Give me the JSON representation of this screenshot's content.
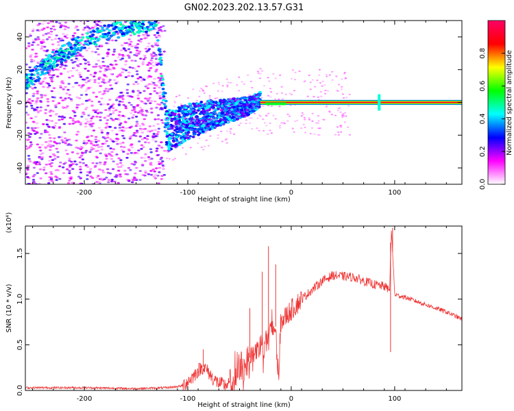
{
  "title": "GN02.2023.202.13.57.G31",
  "chart_data": [
    {
      "type": "heatmap",
      "xlabel": "Height of straight line (km)",
      "ylabel": "Frequency (Hz)",
      "xlim": [
        -257,
        165
      ],
      "ylim": [
        -50,
        50
      ],
      "xticks": [
        -200,
        -100,
        0,
        100
      ],
      "xtick_labels": [
        "-200",
        "-100",
        "0",
        "100"
      ],
      "yticks": [
        -40,
        -20,
        0,
        20,
        40
      ],
      "ytick_labels": [
        "-40",
        "-20",
        "0",
        "20",
        "40"
      ],
      "colorbar": {
        "label": "Normalized spectral amplitude",
        "range": [
          0,
          1
        ],
        "ticks": [
          0.0,
          0.2,
          0.4,
          0.6,
          0.8
        ],
        "tick_labels": [
          "0.0",
          "0.2",
          "0.4",
          "0.6",
          "0.8"
        ],
        "colormap": [
          "#ffffff",
          "#ff00ff",
          "#0000ff",
          "#00ffff",
          "#00ff00",
          "#ffff00",
          "#ff0000",
          "#ff0066"
        ]
      },
      "regions": [
        {
          "x_range": [
            -257,
            -122
          ],
          "description": "broadband scattered noise",
          "level": 0.15
        },
        {
          "x_range": [
            -122,
            -30
          ],
          "description": "noisy signal band",
          "level": 0.35
        },
        {
          "x_range": [
            -30,
            165
          ],
          "description": "strong tone near 0 Hz",
          "level": 0.9
        }
      ],
      "ridge": {
        "x": [
          -257,
          -245,
          -230,
          -215,
          -200,
          -185,
          -170,
          -155,
          -140,
          -130,
          -120,
          -100,
          -80,
          -60,
          -40,
          -30,
          -20,
          -10,
          0,
          50,
          85,
          100,
          165
        ],
        "y": [
          12,
          18,
          26,
          32,
          38,
          41,
          44,
          46,
          48,
          50,
          -18,
          -12,
          -8,
          -5,
          -2,
          2,
          -2,
          -1,
          0,
          0,
          0,
          0,
          0
        ]
      }
    },
    {
      "type": "line",
      "xlabel": "Height of straight line (km)",
      "ylabel": "SNR (10 * v/v)",
      "y_multiplier": "(x10⁴)",
      "xlim": [
        -257,
        165
      ],
      "ylim": [
        0,
        1.8
      ],
      "xticks": [
        -200,
        -100,
        0,
        100
      ],
      "xtick_labels": [
        "-200",
        "-100",
        "0",
        "100"
      ],
      "yticks": [
        0.0,
        0.5,
        1.0,
        1.5
      ],
      "ytick_labels": [
        "0.0",
        "0.5",
        "1.0",
        "1.5"
      ],
      "color": "#ee3333",
      "series": [
        {
          "x": [
            -257,
            -200,
            -150,
            -120,
            -105,
            -100,
            -95,
            -90,
            -85,
            -80,
            -75,
            -70,
            -65,
            -60,
            -55,
            -50,
            -45,
            -40,
            -35,
            -30,
            -25,
            -20,
            -15,
            -12,
            -10,
            0,
            10,
            20,
            30,
            40,
            50,
            60,
            70,
            80,
            90,
            95,
            97,
            100,
            110,
            120,
            130,
            140,
            150,
            165
          ],
          "y": [
            0.03,
            0.03,
            0.02,
            0.03,
            0.05,
            0.1,
            0.15,
            0.22,
            0.26,
            0.2,
            0.12,
            0.08,
            0.06,
            0.07,
            0.12,
            0.2,
            0.28,
            0.36,
            0.42,
            0.48,
            0.55,
            0.62,
            0.7,
            0.1,
            0.75,
            0.88,
            1.0,
            1.1,
            1.2,
            1.26,
            1.25,
            1.24,
            1.2,
            1.16,
            1.14,
            1.1,
            1.75,
            1.05,
            1.02,
            0.98,
            0.94,
            0.9,
            0.86,
            0.78
          ]
        }
      ],
      "spikes": [
        {
          "x": -85,
          "y": 0.45
        },
        {
          "x": -40,
          "y": 0.9
        },
        {
          "x": -28,
          "y": 1.3
        },
        {
          "x": -22,
          "y": 1.58
        },
        {
          "x": -15,
          "y": 1.38
        },
        {
          "x": 96,
          "y": 1.62
        },
        {
          "x": 98,
          "y": 1.78
        },
        {
          "x": 96,
          "y": 0.42
        }
      ]
    }
  ]
}
